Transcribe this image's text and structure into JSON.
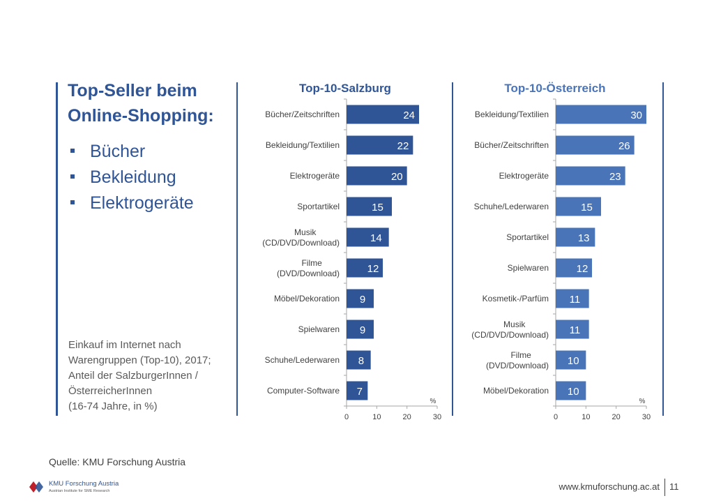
{
  "slide": {
    "title_line1": "Top-Seller beim",
    "title_line2": "Online-Shopping:",
    "bullets": [
      "Bücher",
      "Bekleidung",
      "Elektrogeräte"
    ],
    "note_lines": [
      "Einkauf im Internet nach",
      "Warengruppen (Top-10), 2017;",
      "Anteil der SalzburgerInnen /",
      "ÖsterreicherInnen",
      "(16-74 Jahre, in %)"
    ],
    "source": "Quelle: KMU Forschung Austria",
    "footer_url": "www.kmuforschung.ac.at",
    "page_number": "11",
    "logo_name": "KMU Forschung Austria",
    "logo_sub": "Austrian Institute for SME Research"
  },
  "chart_data": [
    {
      "type": "bar",
      "orientation": "horizontal",
      "title": "Top-10-Salzburg",
      "categories": [
        "Bücher/Zeitschriften",
        "Bekleidung/Textilien",
        "Elektrogeräte",
        "Sportartikel",
        "Musik (CD/DVD/Download)",
        "Filme (DVD/Download)",
        "Möbel/Dekoration",
        "Spielwaren",
        "Schuhe/Lederwaren",
        "Computer-Software"
      ],
      "values": [
        24,
        22,
        20,
        15,
        14,
        12,
        9,
        9,
        8,
        7
      ],
      "xlim": [
        0,
        30
      ],
      "xticks": [
        0,
        10,
        20,
        30
      ],
      "unit": "%",
      "bar_color": "#2f5597",
      "title_color": "#2f5597",
      "grid": false
    },
    {
      "type": "bar",
      "orientation": "horizontal",
      "title": "Top-10-Österreich",
      "categories": [
        "Bekleidung/Textilien",
        "Bücher/Zeitschriften",
        "Elektrogeräte",
        "Schuhe/Lederwaren",
        "Sportartikel",
        "Spielwaren",
        "Kosmetik-/Parfüm",
        "Musik (CD/DVD/Download)",
        "Filme (DVD/Download)",
        "Möbel/Dekoration"
      ],
      "values": [
        30,
        26,
        23,
        15,
        13,
        12,
        11,
        11,
        10,
        10
      ],
      "xlim": [
        0,
        30
      ],
      "xticks": [
        0,
        10,
        20,
        30
      ],
      "unit": "%",
      "bar_color": "#4a74b8",
      "title_color": "#4a74b8",
      "grid": false
    }
  ]
}
